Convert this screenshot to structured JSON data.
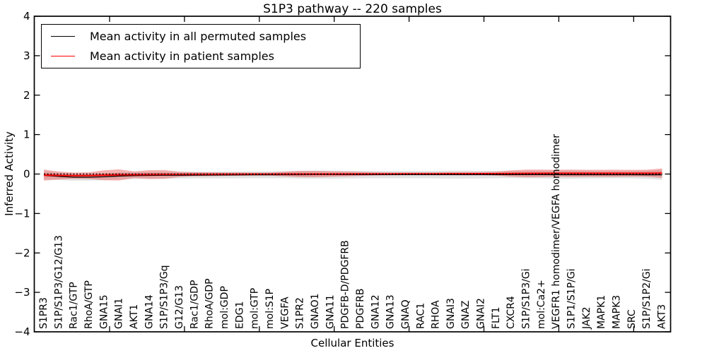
{
  "chart_data": {
    "type": "line",
    "title": "S1P3 pathway -- 220 samples",
    "xlabel": "Cellular Entities",
    "ylabel": "Inferred Activity",
    "ylim": [
      -4,
      4
    ],
    "yticks": [
      4,
      3,
      2,
      1,
      0,
      -1,
      -2,
      -3,
      -4
    ],
    "grid": false,
    "legend_position": "upper left",
    "baseline": {
      "value": 0,
      "style": "dotted",
      "color": "#000000"
    },
    "categories": [
      "S1PR3",
      "S1P/S1P3/G12/G13",
      "Rac1/GTP",
      "RhoA/GTP",
      "GNA15",
      "GNAI1",
      "AKT1",
      "GNA14",
      "S1P/S1P3/Gq",
      "G12/G13",
      "Rac1/GDP",
      "RhoA/GDP",
      "mol:GDP",
      "EDG1",
      "mol:GTP",
      "mol:S1P",
      "VEGFA",
      "S1PR2",
      "GNAO1",
      "GNA11",
      "PDGFB-D/PDGFRB",
      "PDGFRB",
      "GNA12",
      "GNA13",
      "GNAQ",
      "RAC1",
      "RHOA",
      "GNAI3",
      "GNAZ",
      "GNAI2",
      "FLT1",
      "CXCR4",
      "S1P/S1P3/Gi",
      "mol:Ca2+",
      "VEGFR1 homodimer/VEGFA homodimer",
      "S1P1/S1P/Gi",
      "JAK2",
      "MAPK1",
      "MAPK3",
      "SRC",
      "S1P/S1P2/Gi",
      "AKT3"
    ],
    "series": [
      {
        "name": "Mean activity in all permuted samples",
        "color": "#000000",
        "band_color": "#e3e3e3",
        "mean": [
          -0.03,
          -0.06,
          -0.08,
          -0.08,
          -0.07,
          -0.05,
          -0.04,
          -0.035,
          -0.03,
          -0.03,
          -0.028,
          -0.026,
          -0.024,
          -0.022,
          -0.02,
          -0.02,
          -0.018,
          -0.018,
          -0.016,
          -0.016,
          -0.015,
          -0.015,
          -0.015,
          -0.015,
          -0.015,
          -0.015,
          -0.015,
          -0.015,
          -0.015,
          -0.015,
          -0.015,
          -0.015,
          -0.016,
          -0.016,
          -0.018,
          -0.018,
          -0.018,
          -0.018,
          -0.018,
          -0.018,
          -0.02,
          -0.02
        ],
        "std": [
          0.105,
          0.092,
          0.088,
          0.086,
          0.086,
          0.086,
          0.085,
          0.085,
          0.085,
          0.085,
          0.085,
          0.085,
          0.085,
          0.085,
          0.085,
          0.086,
          0.09,
          0.096,
          0.1,
          0.1,
          0.098,
          0.094,
          0.09,
          0.09,
          0.09,
          0.09,
          0.094,
          0.1,
          0.1,
          0.096,
          0.09,
          0.09,
          0.092,
          0.096,
          0.102,
          0.1,
          0.096,
          0.092,
          0.09,
          0.092,
          0.1,
          0.128
        ]
      },
      {
        "name": "Mean activity in patient samples",
        "color": "#ff0000",
        "band_color": "rgba(232,68,68,0.42)",
        "mean": [
          -0.025,
          -0.038,
          -0.042,
          -0.04,
          -0.03,
          -0.022,
          -0.018,
          -0.014,
          -0.01,
          -0.008,
          -0.006,
          -0.005,
          -0.004,
          -0.003,
          -0.002,
          -0.001,
          0.0,
          0.0,
          0.0,
          0.0,
          0.002,
          0.003,
          0.004,
          0.004,
          0.005,
          0.005,
          0.006,
          0.007,
          0.008,
          0.009,
          0.01,
          0.012,
          0.015,
          0.017,
          0.018,
          0.018,
          0.018,
          0.018,
          0.019,
          0.019,
          0.02,
          0.022
        ],
        "std": [
          0.14,
          0.1,
          0.08,
          0.085,
          0.125,
          0.14,
          0.082,
          0.112,
          0.11,
          0.065,
          0.05,
          0.048,
          0.042,
          0.04,
          0.036,
          0.036,
          0.06,
          0.078,
          0.08,
          0.07,
          0.06,
          0.05,
          0.04,
          0.036,
          0.034,
          0.034,
          0.036,
          0.04,
          0.042,
          0.042,
          0.05,
          0.08,
          0.098,
          0.095,
          0.09,
          0.094,
          0.09,
          0.09,
          0.09,
          0.086,
          0.09,
          0.12
        ]
      }
    ]
  },
  "colors": {
    "background": "#ffffff",
    "axis": "#000000",
    "permuted_line": "#000000",
    "patient_line": "#ff0000",
    "permuted_band": "#e3e3e3",
    "patient_band_light": "#f3a6a6",
    "patient_band_dark": "#e88080"
  }
}
